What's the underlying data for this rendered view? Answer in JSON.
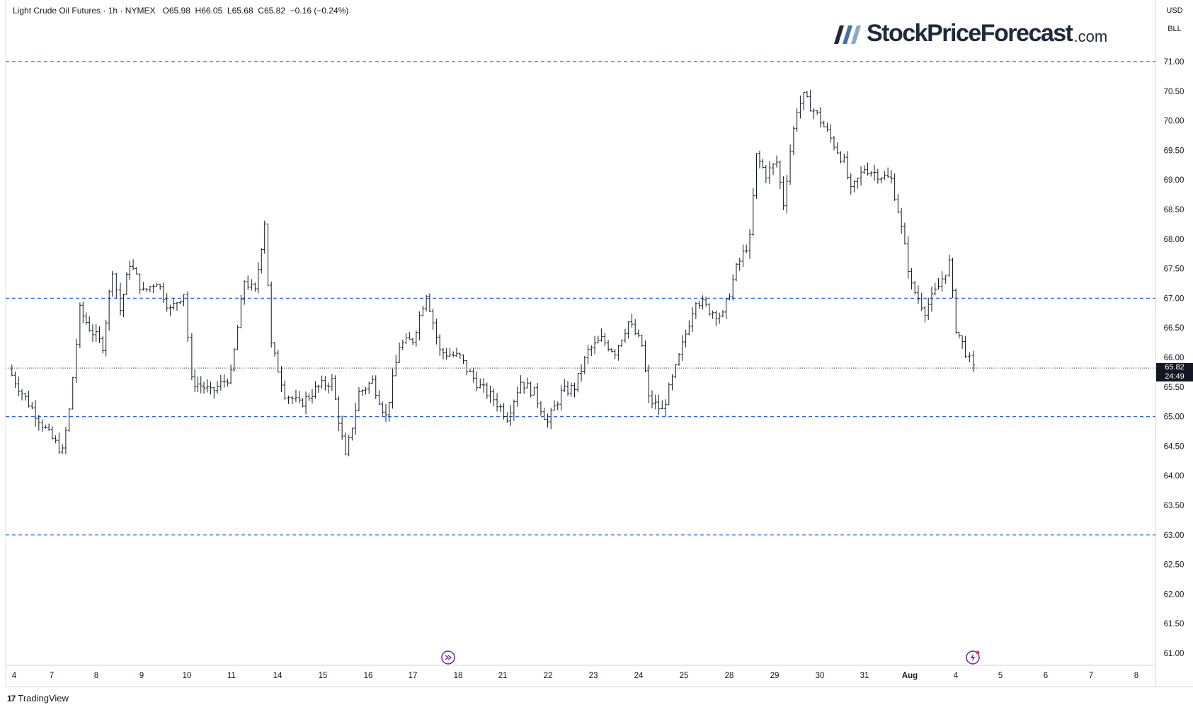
{
  "header": {
    "symbol": "Light Crude Oil Futures",
    "interval": "1h",
    "exchange": "NYMEX",
    "open": "O65.98",
    "high": "H66.05",
    "low": "L65.68",
    "close": "C65.82",
    "change": "−0.16 (−0.24%)"
  },
  "axis_right": {
    "currency": "USD",
    "unit": "BLL"
  },
  "brand": {
    "name": "StockPriceForecast",
    "suffix": ".com"
  },
  "footer": {
    "logo_text": "TradingView"
  },
  "last_price": {
    "value": "65.82",
    "countdown": "24:49"
  },
  "colors": {
    "candles": "#131722",
    "levels": "#2962ff",
    "background": "#ffffff",
    "brand": "#1e2a3a",
    "brand_accent": "#4a6fa5",
    "marker": "#7b1fa2"
  },
  "icons": {
    "events_left": "arrow-circle-icon",
    "events_right": "lightning-circle-icon"
  },
  "chart_data": {
    "type": "ohlc",
    "title": "Light Crude Oil Futures · 1h · NYMEX",
    "ylim": [
      60.8,
      71.5
    ],
    "yticks": [
      "71.00",
      "70.50",
      "70.00",
      "69.50",
      "69.00",
      "68.50",
      "68.00",
      "67.50",
      "67.00",
      "66.50",
      "66.00",
      "65.50",
      "65.00",
      "64.50",
      "64.00",
      "63.50",
      "63.00",
      "62.50",
      "62.00",
      "61.50",
      "61.00"
    ],
    "xticks": [
      "4",
      "7",
      "8",
      "9",
      "10",
      "11",
      "14",
      "15",
      "16",
      "17",
      "18",
      "21",
      "22",
      "23",
      "24",
      "25",
      "28",
      "29",
      "30",
      "31",
      "Aug",
      "4",
      "5",
      "6",
      "7",
      "8"
    ],
    "horizontal_levels": [
      71.0,
      67.0,
      65.0,
      63.0
    ],
    "last_price_line": 65.82,
    "path_points": [
      [
        0,
        65.8
      ],
      [
        1,
        65.4
      ],
      [
        3,
        64.7
      ],
      [
        4,
        64.4
      ],
      [
        4.5,
        65.1
      ],
      [
        5.3,
        66.8
      ],
      [
        6,
        66.5
      ],
      [
        7,
        66.2
      ],
      [
        7.7,
        67.5
      ],
      [
        8.3,
        66.8
      ],
      [
        9,
        67.6
      ],
      [
        10,
        67.1
      ],
      [
        11,
        67.3
      ],
      [
        12,
        66.8
      ],
      [
        13,
        67.1
      ],
      [
        13.6,
        65.6
      ],
      [
        14.5,
        65.5
      ],
      [
        15,
        65.4
      ],
      [
        16.5,
        65.7
      ],
      [
        17.5,
        67.3
      ],
      [
        18.3,
        67.1
      ],
      [
        19,
        68.3
      ],
      [
        19.5,
        66.2
      ],
      [
        20.5,
        65.4
      ],
      [
        21.6,
        65.2
      ],
      [
        23,
        65.5
      ],
      [
        24,
        65.6
      ],
      [
        25,
        64.3
      ],
      [
        26,
        65.4
      ],
      [
        27,
        65.6
      ],
      [
        28,
        65.0
      ],
      [
        29,
        66.2
      ],
      [
        30,
        66.3
      ],
      [
        31,
        67.1
      ],
      [
        32,
        66.1
      ],
      [
        33.5,
        66.0
      ],
      [
        34,
        65.8
      ],
      [
        35,
        65.5
      ],
      [
        36,
        65.3
      ],
      [
        37,
        65.0
      ],
      [
        38,
        65.6
      ],
      [
        39,
        65.4
      ],
      [
        40,
        64.9
      ],
      [
        41,
        65.4
      ],
      [
        42,
        65.5
      ],
      [
        43,
        66.1
      ],
      [
        44,
        66.3
      ],
      [
        45,
        66.1
      ],
      [
        46,
        66.6
      ],
      [
        47,
        66.2
      ],
      [
        47.5,
        65.3
      ],
      [
        48.5,
        65.1
      ],
      [
        49.5,
        65.8
      ],
      [
        50.5,
        66.6
      ],
      [
        51,
        67.0
      ],
      [
        52,
        66.8
      ],
      [
        53,
        66.7
      ],
      [
        53.5,
        67.1
      ],
      [
        54,
        67.5
      ],
      [
        55,
        68.0
      ],
      [
        55.5,
        69.4
      ],
      [
        56.2,
        69.1
      ],
      [
        57,
        69.3
      ],
      [
        57.5,
        68.6
      ],
      [
        58,
        69.5
      ],
      [
        58.5,
        70.2
      ],
      [
        59,
        70.4
      ],
      [
        60,
        70.1
      ],
      [
        61,
        69.7
      ],
      [
        62,
        69.3
      ],
      [
        62.5,
        68.8
      ],
      [
        63.5,
        69.2
      ],
      [
        64.5,
        69.1
      ],
      [
        65.5,
        69.0
      ],
      [
        66,
        68.5
      ],
      [
        67,
        67.2
      ],
      [
        67.5,
        67.0
      ],
      [
        68,
        66.8
      ],
      [
        69,
        67.2
      ],
      [
        69.8,
        67.6
      ],
      [
        70.3,
        66.5
      ],
      [
        71,
        66.1
      ],
      [
        71.6,
        65.8
      ]
    ],
    "bars_per_point_step": 4
  }
}
